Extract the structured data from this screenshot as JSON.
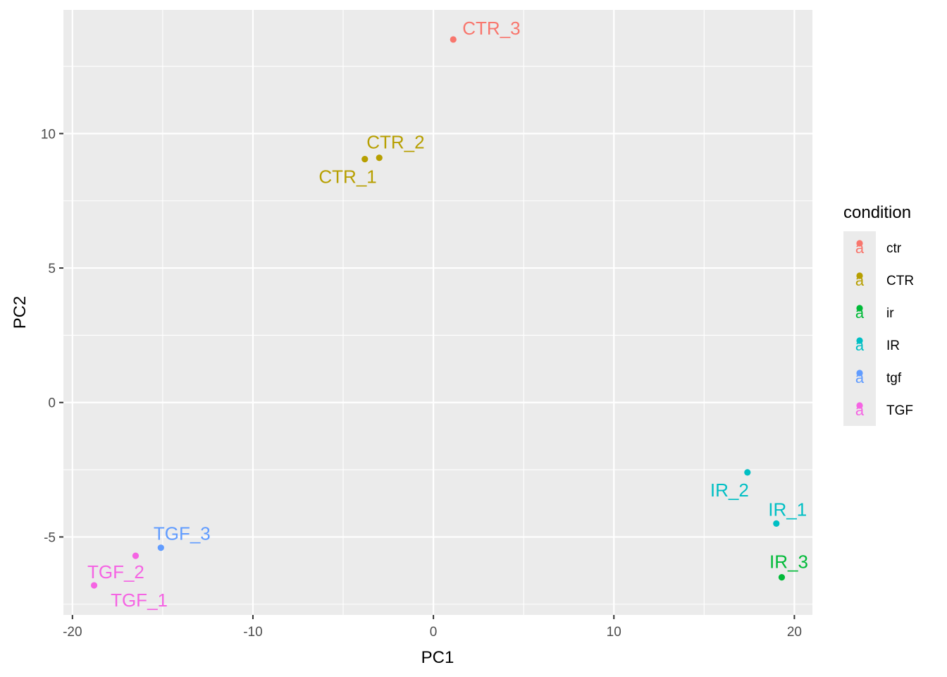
{
  "chart_data": {
    "type": "scatter",
    "xlabel": "PC1",
    "ylabel": "PC2",
    "xlim": [
      -20.5,
      21
    ],
    "ylim": [
      -7.9,
      14.6
    ],
    "xticks": [
      -20,
      -10,
      0,
      10,
      20
    ],
    "yticks": [
      -5,
      0,
      5,
      10
    ],
    "grid": true,
    "legend": {
      "title": "condition",
      "position": "right",
      "key_glyph": "a",
      "entries": [
        {
          "label": "ctr",
          "color": "#F8766D"
        },
        {
          "label": "CTR",
          "color": "#B79F00"
        },
        {
          "label": "ir",
          "color": "#00BA38"
        },
        {
          "label": "IR",
          "color": "#00BFC4"
        },
        {
          "label": "tgf",
          "color": "#619CFF"
        },
        {
          "label": "TGF",
          "color": "#F564E3"
        }
      ]
    },
    "points": [
      {
        "name": "CTR_3",
        "condition": "ctr",
        "x": 1.1,
        "y": 13.5,
        "color": "#F8766D"
      },
      {
        "name": "CTR_1",
        "condition": "CTR",
        "x": -3.8,
        "y": 9.05,
        "color": "#B79F00"
      },
      {
        "name": "CTR_2",
        "condition": "CTR",
        "x": -3.0,
        "y": 9.1,
        "color": "#B79F00"
      },
      {
        "name": "IR_3",
        "condition": "ir",
        "x": 19.3,
        "y": -6.5,
        "color": "#00BA38"
      },
      {
        "name": "IR_2",
        "condition": "IR",
        "x": 17.4,
        "y": -2.6,
        "color": "#00BFC4"
      },
      {
        "name": "IR_1",
        "condition": "IR",
        "x": 19.0,
        "y": -4.5,
        "color": "#00BFC4"
      },
      {
        "name": "TGF_3",
        "condition": "tgf",
        "x": -15.1,
        "y": -5.4,
        "color": "#619CFF"
      },
      {
        "name": "TGF_2",
        "condition": "TGF",
        "x": -16.5,
        "y": -5.7,
        "color": "#F564E3"
      },
      {
        "name": "TGF_1",
        "condition": "TGF",
        "x": -18.8,
        "y": -6.8,
        "color": "#F564E3"
      }
    ]
  }
}
